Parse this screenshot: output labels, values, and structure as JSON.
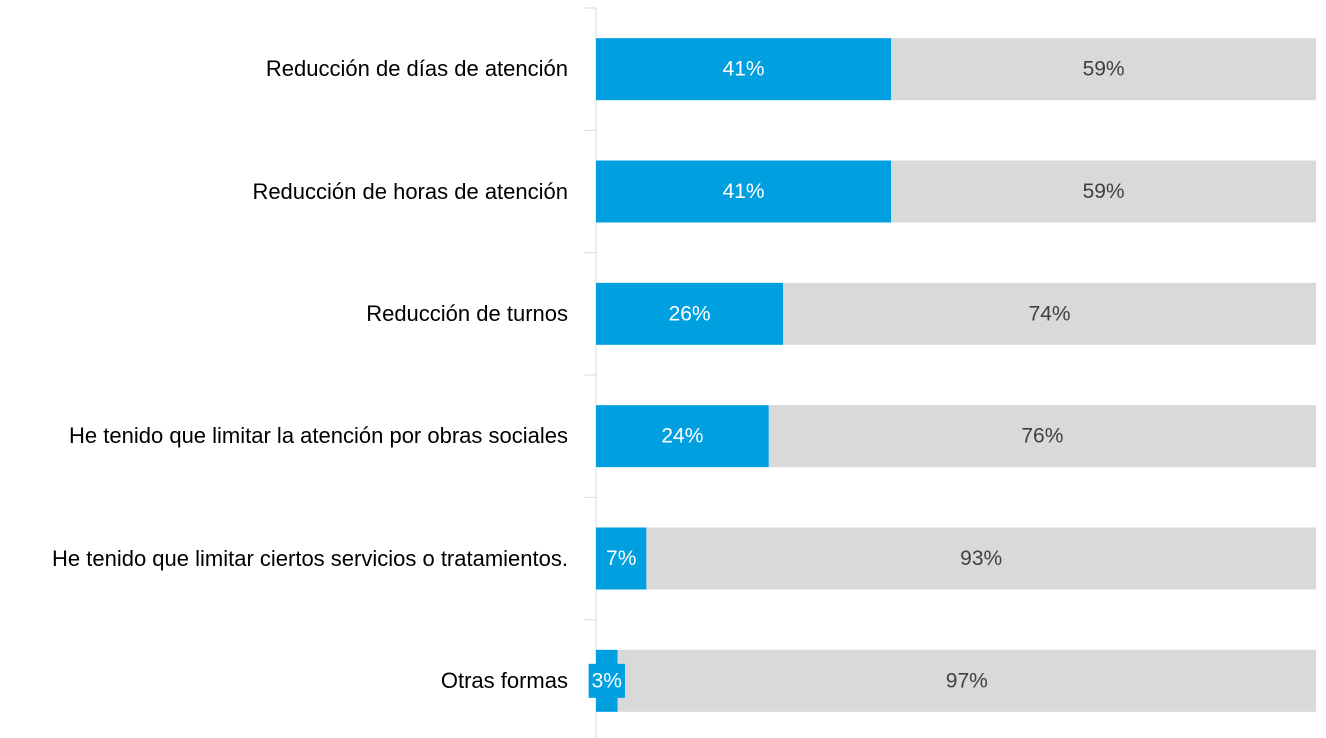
{
  "chart_data": {
    "type": "stacked-bar-horizontal",
    "categories": [
      "Reducción de días de atención",
      "Reducción de horas de atención",
      "Reducción de turnos",
      "He tenido que limitar la atención por obras sociales",
      "He tenido que limitar ciertos servicios o tratamientos.",
      "Otras formas"
    ],
    "series": [
      {
        "color": "#009fdf",
        "label_color": "#ffffff",
        "values": [
          41,
          41,
          26,
          24,
          7,
          3
        ],
        "value_labels": [
          "41%",
          "41%",
          "26%",
          "24%",
          "7%",
          "3%"
        ]
      },
      {
        "color": "#d9d9d9",
        "label_color": "#404040",
        "values": [
          59,
          59,
          74,
          76,
          93,
          97
        ],
        "value_labels": [
          "59%",
          "59%",
          "74%",
          "76%",
          "93%",
          "97%"
        ]
      }
    ]
  }
}
